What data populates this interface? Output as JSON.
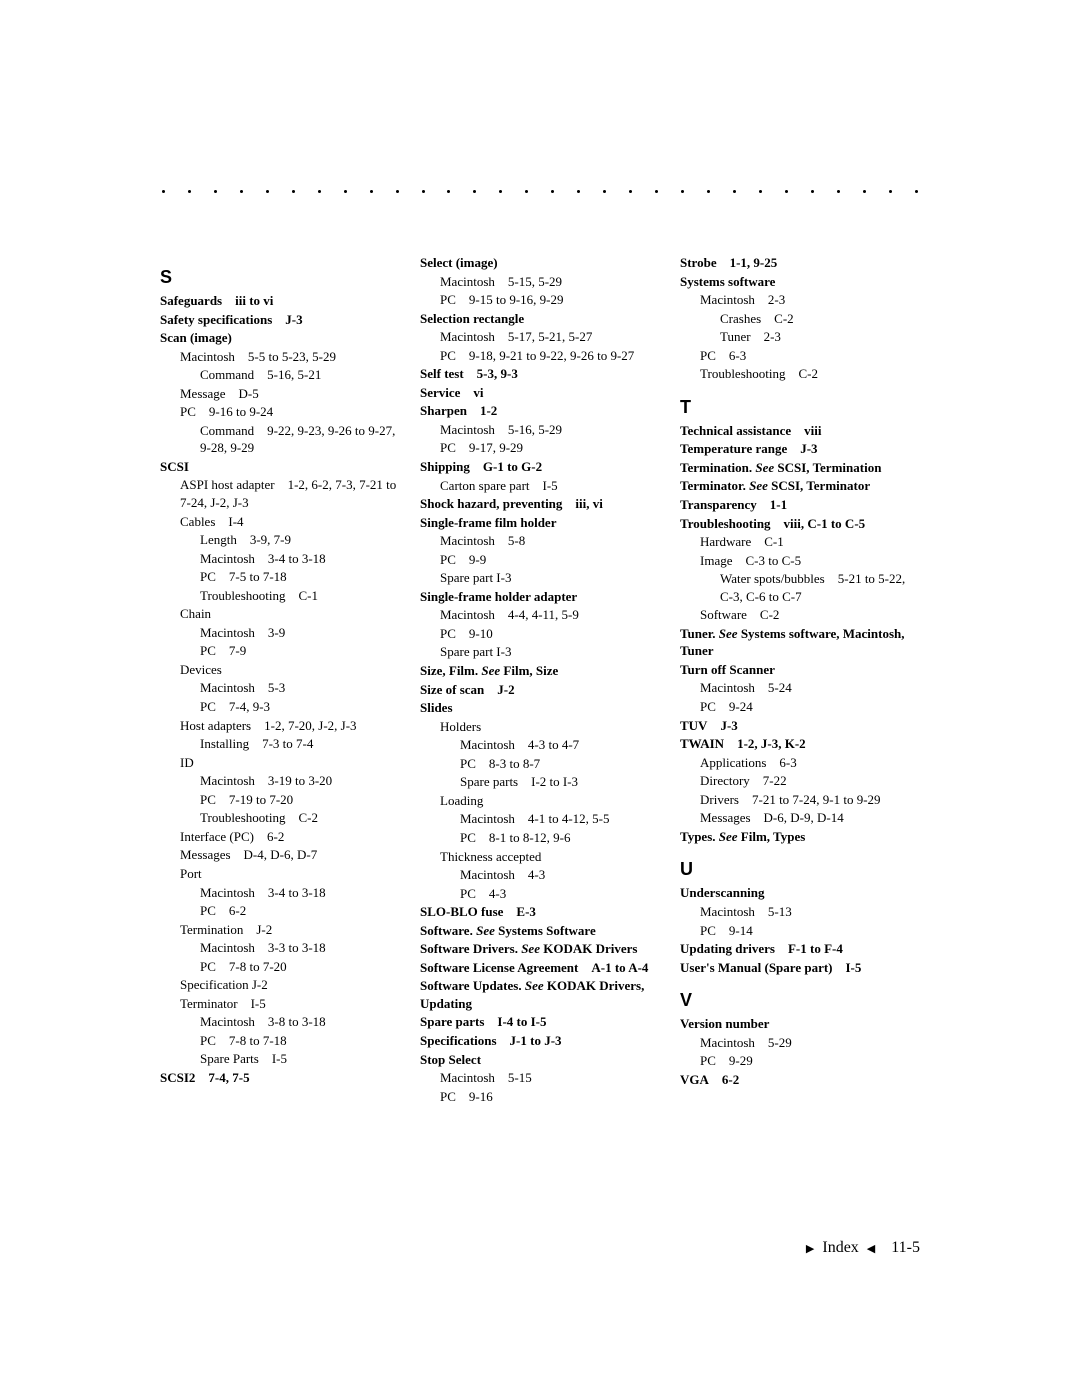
{
  "dots_count": 30,
  "columns": {
    "col1": [
      {
        "type": "letter",
        "text": "S"
      },
      {
        "type": "bold",
        "ind": 0,
        "text": "Safeguards iii to vi"
      },
      {
        "type": "bold",
        "ind": 0,
        "text": "Safety specifications J-3"
      },
      {
        "type": "bold",
        "ind": 0,
        "text": "Scan (image)"
      },
      {
        "type": "plain",
        "ind": 1,
        "text": "Macintosh 5-5 to 5-23, 5-29"
      },
      {
        "type": "plain",
        "ind": 2,
        "text": "Command 5-16, 5-21"
      },
      {
        "type": "plain",
        "ind": 1,
        "text": "Message D-5"
      },
      {
        "type": "plain",
        "ind": 1,
        "text": "PC 9-16 to 9-24"
      },
      {
        "type": "plain",
        "ind": 2,
        "text": "Command 9-22, 9-23, 9-26 to 9-27, 9-28, 9-29"
      },
      {
        "type": "bold",
        "ind": 0,
        "text": "SCSI"
      },
      {
        "type": "plain",
        "ind": 1,
        "text": "ASPI host adapter 1-2, 6-2, 7-3, 7-21 to 7-24, J-2, J-3"
      },
      {
        "type": "plain",
        "ind": 1,
        "text": "Cables I-4"
      },
      {
        "type": "plain",
        "ind": 2,
        "text": "Length 3-9, 7-9"
      },
      {
        "type": "plain",
        "ind": 2,
        "text": "Macintosh 3-4 to 3-18"
      },
      {
        "type": "plain",
        "ind": 2,
        "text": "PC 7-5 to 7-18"
      },
      {
        "type": "plain",
        "ind": 2,
        "text": "Troubleshooting C-1"
      },
      {
        "type": "plain",
        "ind": 1,
        "text": "Chain"
      },
      {
        "type": "plain",
        "ind": 2,
        "text": "Macintosh 3-9"
      },
      {
        "type": "plain",
        "ind": 2,
        "text": "PC 7-9"
      },
      {
        "type": "plain",
        "ind": 1,
        "text": "Devices"
      },
      {
        "type": "plain",
        "ind": 2,
        "text": "Macintosh 5-3"
      },
      {
        "type": "plain",
        "ind": 2,
        "text": "PC 7-4, 9-3"
      },
      {
        "type": "plain",
        "ind": 1,
        "text": "Host adapters 1-2, 7-20, J-2, J-3"
      },
      {
        "type": "plain",
        "ind": 2,
        "text": "Installing 7-3 to 7-4"
      },
      {
        "type": "plain",
        "ind": 1,
        "text": "ID"
      },
      {
        "type": "plain",
        "ind": 2,
        "text": "Macintosh 3-19 to 3-20"
      },
      {
        "type": "plain",
        "ind": 2,
        "text": "PC 7-19 to 7-20"
      },
      {
        "type": "plain",
        "ind": 2,
        "text": "Troubleshooting C-2"
      },
      {
        "type": "plain",
        "ind": 1,
        "text": "Interface (PC) 6-2"
      },
      {
        "type": "plain",
        "ind": 1,
        "text": "Messages D-4, D-6, D-7"
      },
      {
        "type": "plain",
        "ind": 1,
        "text": "Port"
      },
      {
        "type": "plain",
        "ind": 2,
        "text": "Macintosh 3-4 to 3-18"
      },
      {
        "type": "plain",
        "ind": 2,
        "text": "PC 6-2"
      },
      {
        "type": "plain",
        "ind": 1,
        "text": "Termination J-2"
      },
      {
        "type": "plain",
        "ind": 2,
        "text": "Macintosh 3-3 to 3-18"
      },
      {
        "type": "plain",
        "ind": 2,
        "text": "PC 7-8 to 7-20"
      },
      {
        "type": "plain",
        "ind": 1,
        "text": "Specification J-2"
      },
      {
        "type": "plain",
        "ind": 1,
        "text": "Terminator I-5"
      },
      {
        "type": "plain",
        "ind": 2,
        "text": "Macintosh 3-8 to 3-18"
      },
      {
        "type": "plain",
        "ind": 2,
        "text": "PC 7-8 to 7-18"
      },
      {
        "type": "plain",
        "ind": 2,
        "text": "Spare Parts I-5"
      },
      {
        "type": "bold",
        "ind": 0,
        "text": "SCSI2 7-4, 7-5"
      }
    ],
    "col2": [
      {
        "type": "bold",
        "ind": 0,
        "text": "Select (image)"
      },
      {
        "type": "plain",
        "ind": 1,
        "text": "Macintosh 5-15, 5-29"
      },
      {
        "type": "plain",
        "ind": 1,
        "text": "PC 9-15 to 9-16, 9-29"
      },
      {
        "type": "bold",
        "ind": 0,
        "text": "Selection rectangle"
      },
      {
        "type": "plain",
        "ind": 1,
        "text": "Macintosh 5-17, 5-21, 5-27"
      },
      {
        "type": "plain",
        "ind": 1,
        "text": "PC 9-18, 9-21 to 9-22, 9-26 to 9-27"
      },
      {
        "type": "bold",
        "ind": 0,
        "text": "Self test 5-3, 9-3"
      },
      {
        "type": "bold",
        "ind": 0,
        "text": "Service vi"
      },
      {
        "type": "bold",
        "ind": 0,
        "text": "Sharpen 1-2"
      },
      {
        "type": "plain",
        "ind": 1,
        "text": "Macintosh 5-16, 5-29"
      },
      {
        "type": "plain",
        "ind": 1,
        "text": "PC 9-17, 9-29"
      },
      {
        "type": "bold",
        "ind": 0,
        "text": "Shipping G-1 to G-2"
      },
      {
        "type": "plain",
        "ind": 1,
        "text": "Carton spare part I-5"
      },
      {
        "type": "bold",
        "ind": 0,
        "text": "Shock hazard, preventing iii, vi"
      },
      {
        "type": "bold",
        "ind": 0,
        "text": "Single-frame film holder"
      },
      {
        "type": "plain",
        "ind": 1,
        "text": "Macintosh 5-8"
      },
      {
        "type": "plain",
        "ind": 1,
        "text": "PC 9-9"
      },
      {
        "type": "plain",
        "ind": 1,
        "text": "Spare part I-3"
      },
      {
        "type": "bold",
        "ind": 0,
        "text": "Single-frame holder adapter"
      },
      {
        "type": "plain",
        "ind": 1,
        "text": "Macintosh 4-4, 4-11, 5-9"
      },
      {
        "type": "plain",
        "ind": 1,
        "text": "PC 9-10"
      },
      {
        "type": "plain",
        "ind": 1,
        "text": "Spare part I-3"
      },
      {
        "type": "bold-see",
        "ind": 0,
        "before": "Size, Film. ",
        "see": "See",
        "after": " Film, Size"
      },
      {
        "type": "bold",
        "ind": 0,
        "text": "Size of scan J-2"
      },
      {
        "type": "bold",
        "ind": 0,
        "text": "Slides"
      },
      {
        "type": "plain",
        "ind": 1,
        "text": "Holders"
      },
      {
        "type": "plain",
        "ind": 2,
        "text": "Macintosh 4-3 to 4-7"
      },
      {
        "type": "plain",
        "ind": 2,
        "text": "PC 8-3 to 8-7"
      },
      {
        "type": "plain",
        "ind": 2,
        "text": "Spare parts I-2 to I-3"
      },
      {
        "type": "plain",
        "ind": 1,
        "text": "Loading"
      },
      {
        "type": "plain",
        "ind": 2,
        "text": "Macintosh 4-1 to 4-12, 5-5"
      },
      {
        "type": "plain",
        "ind": 2,
        "text": "PC 8-1 to 8-12, 9-6"
      },
      {
        "type": "plain",
        "ind": 1,
        "text": "Thickness accepted"
      },
      {
        "type": "plain",
        "ind": 2,
        "text": "Macintosh 4-3"
      },
      {
        "type": "plain",
        "ind": 2,
        "text": "PC 4-3"
      },
      {
        "type": "bold",
        "ind": 0,
        "text": "SLO-BLO fuse E-3"
      },
      {
        "type": "bold-see",
        "ind": 0,
        "before": "Software. ",
        "see": "See",
        "after": " Systems Software"
      },
      {
        "type": "bold-see",
        "ind": 0,
        "before": "Software Drivers. ",
        "see": "See",
        "after": " KODAK Drivers"
      },
      {
        "type": "bold",
        "ind": 0,
        "text": "Software License Agreement A-1 to A-4"
      },
      {
        "type": "bold-see",
        "ind": 0,
        "before": "Software Updates. ",
        "see": "See",
        "after": " KODAK Drivers, Updating"
      },
      {
        "type": "bold",
        "ind": 0,
        "text": "Spare parts I-4 to I-5"
      },
      {
        "type": "bold",
        "ind": 0,
        "text": "Specifications J-1 to J-3"
      },
      {
        "type": "bold",
        "ind": 0,
        "text": "Stop Select"
      },
      {
        "type": "plain",
        "ind": 1,
        "text": "Macintosh 5-15"
      },
      {
        "type": "plain",
        "ind": 1,
        "text": "PC 9-16"
      }
    ],
    "col3": [
      {
        "type": "bold",
        "ind": 0,
        "text": "Strobe 1-1, 9-25"
      },
      {
        "type": "bold",
        "ind": 0,
        "text": "Systems software"
      },
      {
        "type": "plain",
        "ind": 1,
        "text": "Macintosh 2-3"
      },
      {
        "type": "plain",
        "ind": 2,
        "text": "Crashes C-2"
      },
      {
        "type": "plain",
        "ind": 2,
        "text": "Tuner 2-3"
      },
      {
        "type": "plain",
        "ind": 1,
        "text": "PC 6-3"
      },
      {
        "type": "plain",
        "ind": 1,
        "text": "Troubleshooting C-2"
      },
      {
        "type": "letter",
        "text": "T"
      },
      {
        "type": "bold",
        "ind": 0,
        "text": "Technical assistance viii"
      },
      {
        "type": "bold",
        "ind": 0,
        "text": "Temperature range J-3"
      },
      {
        "type": "bold-see",
        "ind": 0,
        "before": "Termination. ",
        "see": "See",
        "after": " SCSI, Termination"
      },
      {
        "type": "bold-see",
        "ind": 0,
        "before": "Terminator. ",
        "see": "See",
        "after": " SCSI, Terminator"
      },
      {
        "type": "bold",
        "ind": 0,
        "text": "Transparency 1-1"
      },
      {
        "type": "bold",
        "ind": 0,
        "text": "Troubleshooting viii, C-1 to C-5"
      },
      {
        "type": "plain",
        "ind": 1,
        "text": "Hardware C-1"
      },
      {
        "type": "plain",
        "ind": 1,
        "text": "Image C-3 to C-5"
      },
      {
        "type": "plain",
        "ind": 2,
        "text": "Water spots/bubbles 5-21 to 5-22, C-3, C-6 to C-7"
      },
      {
        "type": "plain",
        "ind": 1,
        "text": "Software C-2"
      },
      {
        "type": "bold-see",
        "ind": 0,
        "before": "Tuner. ",
        "see": "See",
        "after": " Systems software, Macintosh, Tuner"
      },
      {
        "type": "bold",
        "ind": 0,
        "text": "Turn off Scanner"
      },
      {
        "type": "plain",
        "ind": 1,
        "text": "Macintosh 5-24"
      },
      {
        "type": "plain",
        "ind": 1,
        "text": "PC 9-24"
      },
      {
        "type": "bold",
        "ind": 0,
        "text": "TUV J-3"
      },
      {
        "type": "bold",
        "ind": 0,
        "text": "TWAIN 1-2, J-3, K-2"
      },
      {
        "type": "plain",
        "ind": 1,
        "text": "Applications 6-3"
      },
      {
        "type": "plain",
        "ind": 1,
        "text": "Directory 7-22"
      },
      {
        "type": "plain",
        "ind": 1,
        "text": "Drivers 7-21 to 7-24, 9-1 to 9-29"
      },
      {
        "type": "plain",
        "ind": 1,
        "text": "Messages D-6, D-9, D-14"
      },
      {
        "type": "bold-see",
        "ind": 0,
        "before": "Types. ",
        "see": "See",
        "after": " Film, Types"
      },
      {
        "type": "letter",
        "text": "U"
      },
      {
        "type": "bold",
        "ind": 0,
        "text": "Underscanning"
      },
      {
        "type": "plain",
        "ind": 1,
        "text": "Macintosh 5-13"
      },
      {
        "type": "plain",
        "ind": 1,
        "text": "PC 9-14"
      },
      {
        "type": "bold",
        "ind": 0,
        "text": "Updating drivers F-1 to F-4"
      },
      {
        "type": "bold",
        "ind": 0,
        "text": "User's Manual (Spare part) I-5"
      },
      {
        "type": "letter",
        "text": "V"
      },
      {
        "type": "bold",
        "ind": 0,
        "text": "Version number"
      },
      {
        "type": "plain",
        "ind": 1,
        "text": "Macintosh 5-29"
      },
      {
        "type": "plain",
        "ind": 1,
        "text": "PC 9-29"
      },
      {
        "type": "bold",
        "ind": 0,
        "text": "VGA 6-2"
      }
    ]
  },
  "footer": {
    "label": "Index",
    "page": "11-5"
  }
}
